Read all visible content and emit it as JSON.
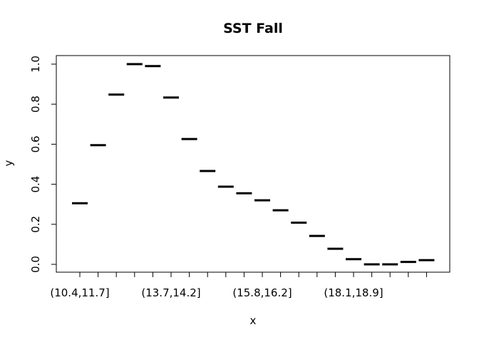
{
  "chart_data": {
    "type": "scatter",
    "title": "SST Fall",
    "xlabel": "x",
    "ylabel": "y",
    "ylim": [
      0,
      1
    ],
    "y_ticks": [
      "0.0",
      "0.2",
      "0.4",
      "0.6",
      "0.8",
      "1.0"
    ],
    "categories": [
      "(10.4,11.7]",
      "",
      "",
      "",
      "",
      "(13.7,14.2]",
      "",
      "",
      "",
      "",
      "(15.8,16.2]",
      "",
      "",
      "",
      "",
      "(18.1,18.9]",
      "",
      "",
      "",
      ""
    ],
    "values": [
      0.305,
      0.595,
      0.848,
      1.0,
      0.99,
      0.833,
      0.626,
      0.466,
      0.388,
      0.355,
      0.32,
      0.27,
      0.208,
      0.142,
      0.078,
      0.026,
      0.0,
      0.0,
      0.012,
      0.021
    ]
  }
}
